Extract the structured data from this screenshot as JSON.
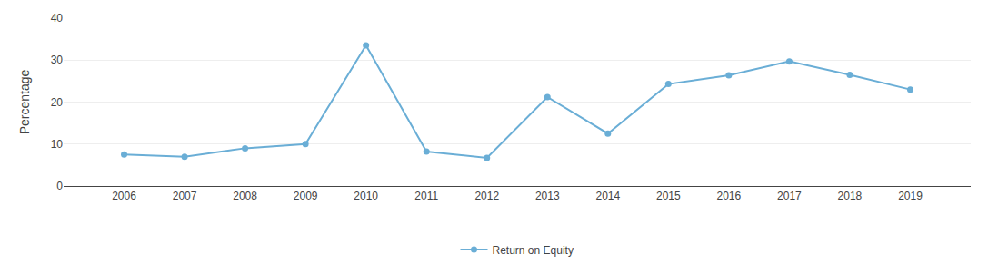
{
  "chart_data": {
    "type": "line",
    "x": [
      2006,
      2007,
      2008,
      2009,
      2010,
      2011,
      2012,
      2013,
      2014,
      2015,
      2016,
      2017,
      2018,
      2019
    ],
    "series": [
      {
        "name": "Return on Equity",
        "color": "#6aaed6",
        "marker": "circle",
        "line_style": "solid",
        "values": [
          7.5,
          7.0,
          9.0,
          10.0,
          33.5,
          8.2,
          6.7,
          21.2,
          12.5,
          24.3,
          26.4,
          29.7,
          26.5,
          23.0
        ]
      }
    ],
    "ylabel": "Percentage",
    "xlim": [
      2005,
      2020
    ],
    "xticks": [
      2006,
      2007,
      2008,
      2009,
      2010,
      2011,
      2012,
      2013,
      2014,
      2015,
      2016,
      2017,
      2018,
      2019
    ],
    "ylim": [
      0,
      40
    ],
    "yticks": [
      0,
      10,
      20,
      30,
      40
    ],
    "grid": true,
    "legend": "bottom"
  }
}
